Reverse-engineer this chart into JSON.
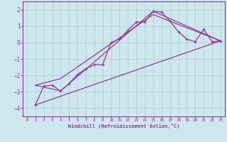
{
  "xlabel": "Windchill (Refroidissement éolien,°C)",
  "background_color": "#cce8ec",
  "grid_color": "#aacccc",
  "line_color": "#993399",
  "border_color": "#993399",
  "xlim": [
    -0.5,
    23.5
  ],
  "ylim": [
    -4.5,
    2.5
  ],
  "yticks": [
    -4,
    -3,
    -2,
    -1,
    0,
    1,
    2
  ],
  "xticks": [
    0,
    1,
    2,
    3,
    4,
    5,
    6,
    7,
    8,
    9,
    10,
    11,
    12,
    13,
    14,
    15,
    16,
    17,
    18,
    19,
    20,
    21,
    22,
    23
  ],
  "line1_x": [
    1,
    2,
    3,
    4,
    5,
    6,
    7,
    8,
    9,
    10,
    11,
    12,
    13,
    14,
    15,
    16,
    17,
    18,
    19,
    20,
    21,
    22,
    23
  ],
  "line1_y": [
    -3.8,
    -2.65,
    -2.6,
    -2.95,
    -2.5,
    -1.95,
    -1.6,
    -1.35,
    -1.35,
    0.0,
    0.2,
    0.75,
    1.25,
    1.25,
    1.9,
    1.85,
    1.3,
    0.65,
    0.2,
    0.05,
    0.8,
    0.05,
    0.1
  ],
  "line2_x": [
    1,
    23
  ],
  "line2_y": [
    -3.8,
    0.1
  ],
  "line3_x": [
    1,
    4,
    15,
    23
  ],
  "line3_y": [
    -2.6,
    -2.95,
    1.9,
    0.1
  ],
  "line4_x": [
    1,
    4,
    15,
    23
  ],
  "line4_y": [
    -2.6,
    -2.2,
    1.7,
    0.1
  ]
}
